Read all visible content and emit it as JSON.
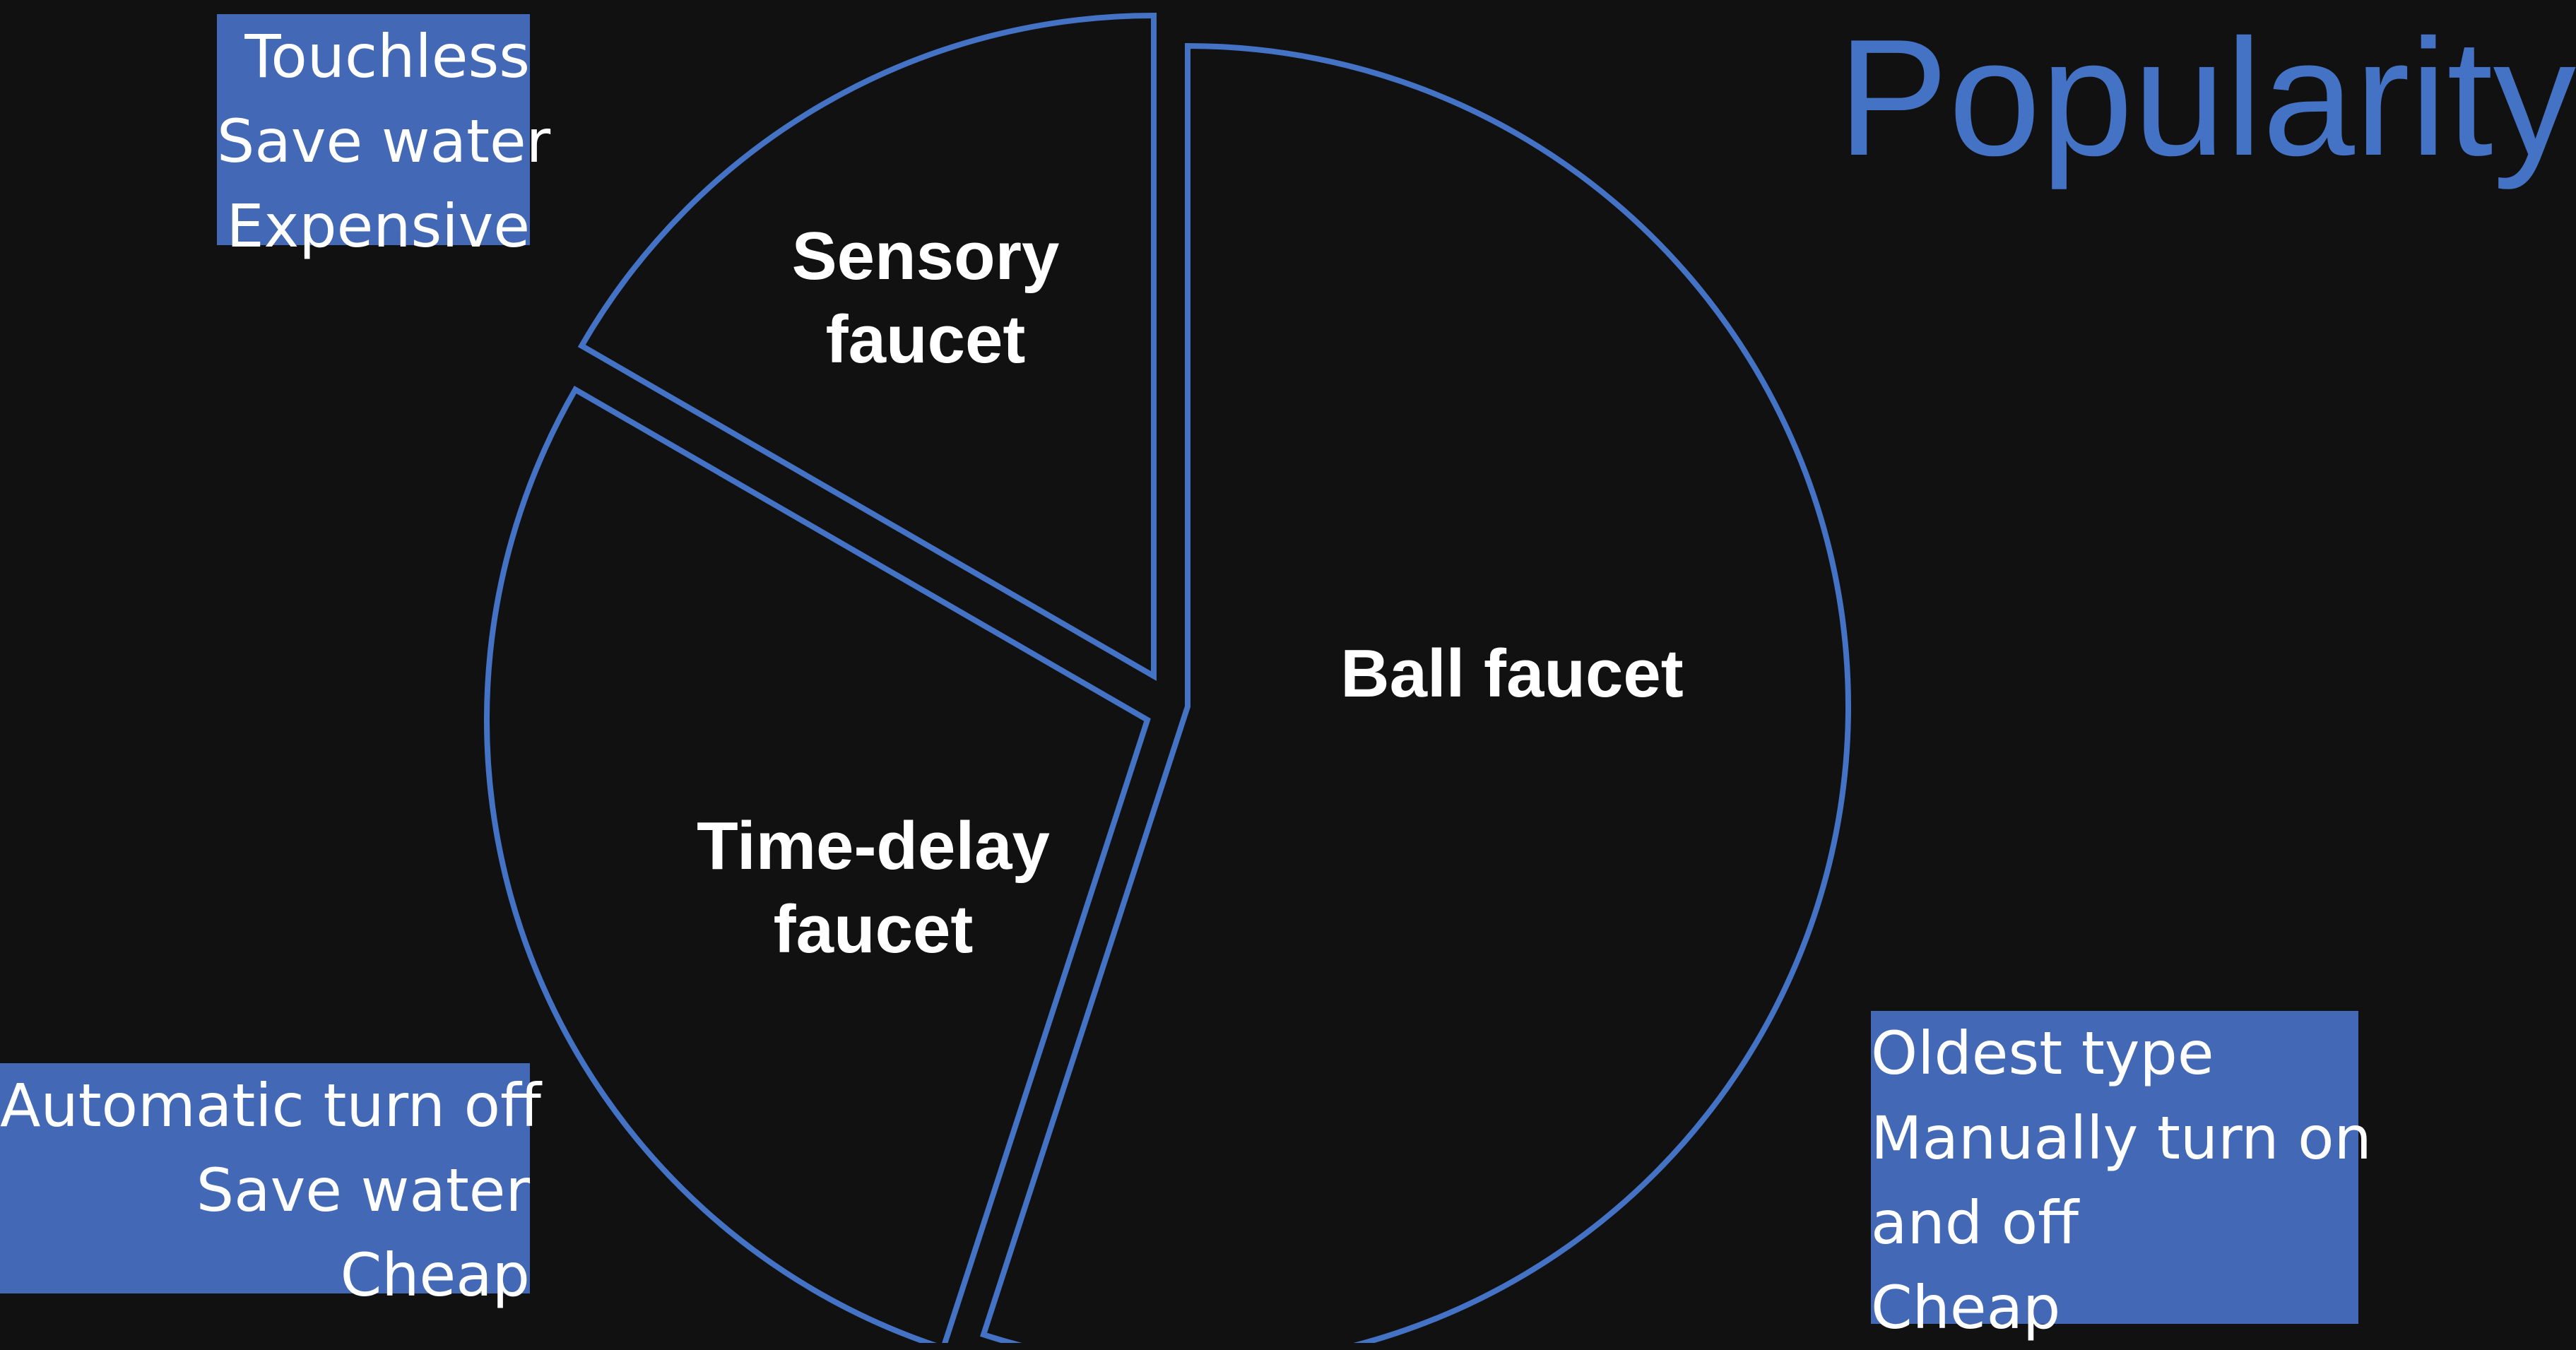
{
  "chart_data": {
    "type": "pie",
    "title": "Popularity",
    "exploded": true,
    "style": {
      "stroke": "#4472c4",
      "fill": "#111112",
      "label_color": "#ffffff"
    },
    "slices": [
      {
        "label_lines": [
          "Ball faucet"
        ],
        "value": 55,
        "start_angle_deg": 0,
        "end_angle_deg": 198
      },
      {
        "label_lines": [
          "Time-delay",
          "faucet"
        ],
        "value": 28,
        "start_angle_deg": 198,
        "end_angle_deg": 300
      },
      {
        "label_lines": [
          "Sensory",
          "faucet"
        ],
        "value": 17,
        "start_angle_deg": 300,
        "end_angle_deg": 360
      }
    ]
  },
  "notes": {
    "sensory": {
      "lines": [
        "Touchless",
        "Save water",
        "Expensive"
      ]
    },
    "time_delay": {
      "lines": [
        "Automatic turn off",
        "Save water",
        "Cheap"
      ]
    },
    "ball": {
      "lines": [
        "Oldest type",
        "Manually turn on",
        "and off",
        "Cheap"
      ]
    }
  },
  "colors": {
    "background": "#111112",
    "accent": "#4472c4",
    "note_box": "#4368b6"
  }
}
